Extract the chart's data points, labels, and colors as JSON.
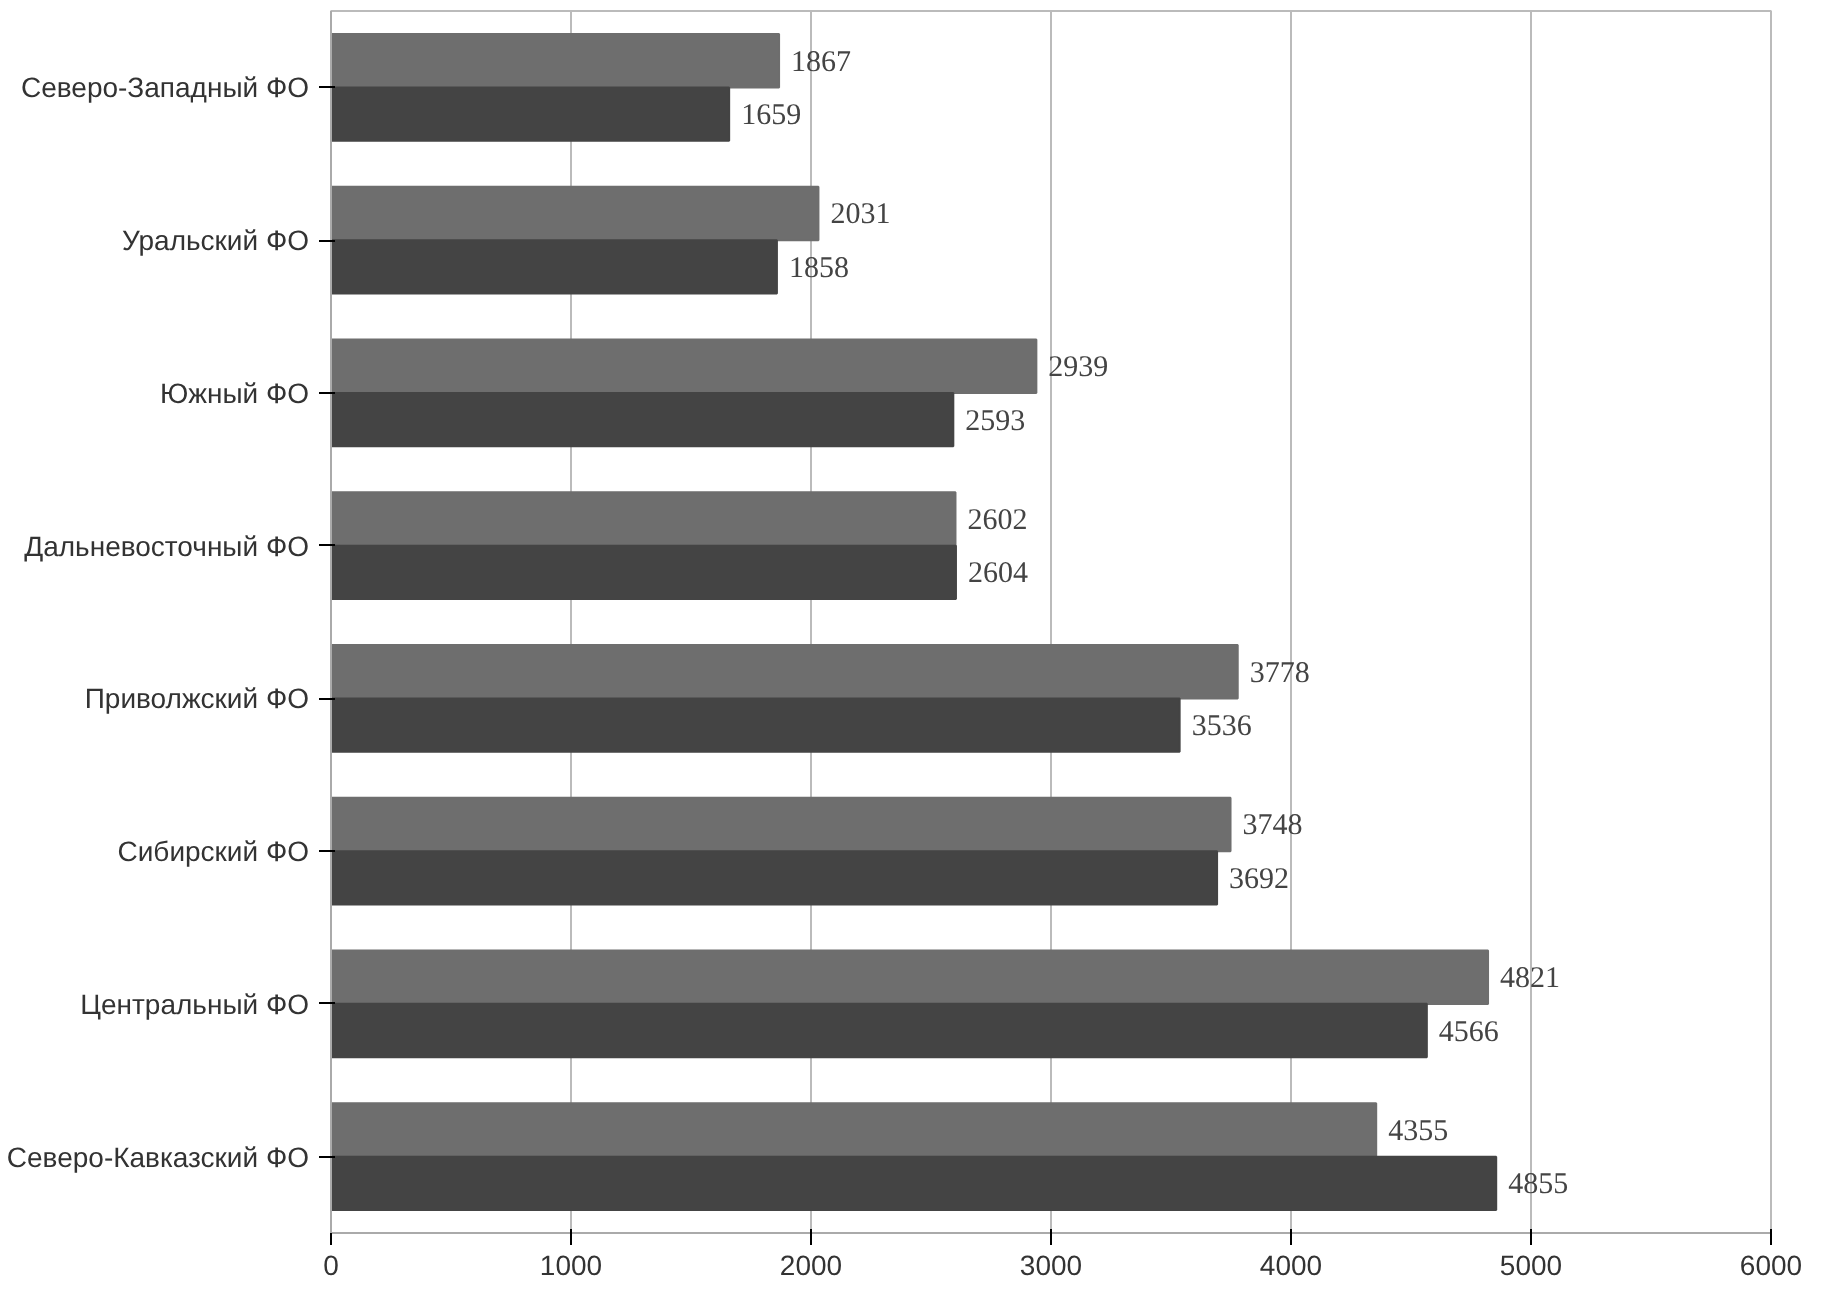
{
  "chart_data": {
    "type": "bar",
    "orientation": "horizontal",
    "categories": [
      "Северо-Западный ФО",
      "Уральский ФО",
      "Южный ФО",
      "Дальневосточный ФО",
      "Приволжский ФО",
      "Сибирский ФО",
      "Центральный ФО",
      "Северо-Кавказский ФО"
    ],
    "series": [
      {
        "color": "#6e6e6e",
        "values": [
          1867,
          2031,
          2939,
          2602,
          3778,
          3748,
          4821,
          4355
        ]
      },
      {
        "color": "#444444",
        "values": [
          1659,
          1858,
          2593,
          2604,
          3536,
          3692,
          4566,
          4855
        ]
      }
    ],
    "xlim": [
      0,
      6000
    ],
    "xticks": [
      0,
      1000,
      2000,
      3000,
      4000,
      5000,
      6000
    ],
    "grid": "x",
    "data_labels": true
  }
}
